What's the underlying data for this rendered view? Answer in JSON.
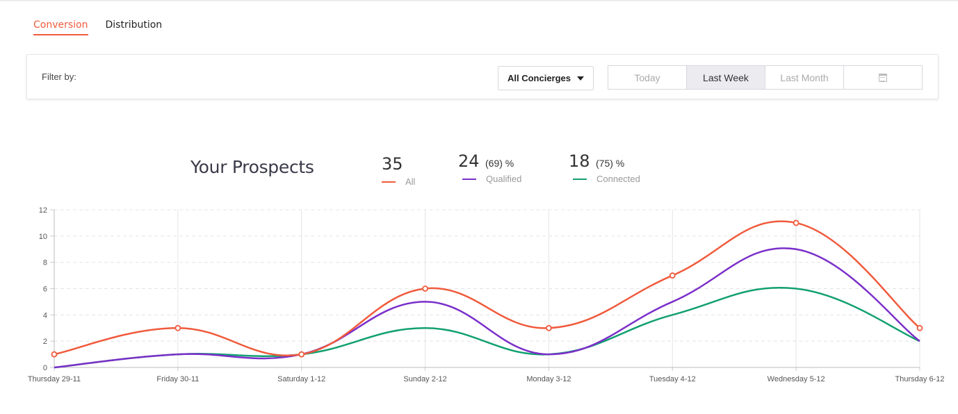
{
  "tabs": [
    {
      "label": "Conversion",
      "active": true
    },
    {
      "label": "Distribution",
      "active": false
    }
  ],
  "filter": {
    "label": "Filter by:",
    "concierge_select": "All Concierges",
    "ranges": [
      {
        "label": "Today",
        "active": false
      },
      {
        "label": "Last Week",
        "active": true
      },
      {
        "label": "Last Month",
        "active": false
      }
    ],
    "calendar_icon": "calendar-icon"
  },
  "summary": {
    "title": "Your Prospects",
    "all": {
      "count": "35",
      "label": "All",
      "color": "#f05a3c"
    },
    "qualified": {
      "count": "24",
      "percent": "(69) %",
      "label": "Qualified",
      "color": "#7b2fc9"
    },
    "connected": {
      "count": "18",
      "percent": "(75) %",
      "label": "Connected",
      "color": "#12a070"
    }
  },
  "chart_data": {
    "type": "line",
    "categories": [
      "Thursday 29-11",
      "Friday 30-11",
      "Saturday 1-12",
      "Sunday 2-12",
      "Monday 3-12",
      "Tuesday 4-12",
      "Wednesday 5-12",
      "Thursday 6-12"
    ],
    "ylim": [
      0,
      12
    ],
    "yticks": [
      0,
      2,
      4,
      6,
      8,
      10,
      12
    ],
    "grid": true,
    "series": [
      {
        "name": "All",
        "color": "#f05a3c",
        "values": [
          1,
          3,
          1,
          6,
          3,
          7,
          11,
          3
        ],
        "markers": true
      },
      {
        "name": "Qualified",
        "color": "#7b2fc9",
        "values": [
          0,
          1,
          1,
          5,
          1,
          5,
          9,
          2
        ],
        "markers": false
      },
      {
        "name": "Connected",
        "color": "#12a070",
        "values": [
          0,
          1,
          1,
          3,
          1,
          4,
          6,
          2
        ],
        "markers": false
      }
    ]
  }
}
